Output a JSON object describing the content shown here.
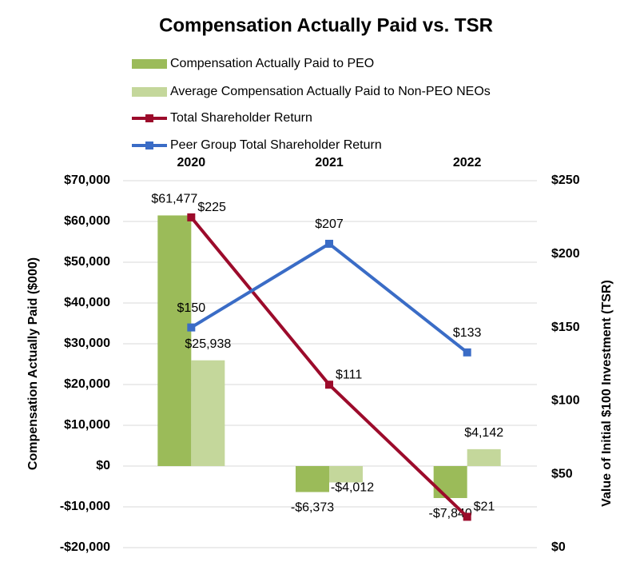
{
  "chart_data": {
    "type": "bar",
    "title": "Compensation Actually Paid vs. TSR",
    "categories": [
      "2020",
      "2021",
      "2022"
    ],
    "y_label": "Compensation Actually Paid ($000)",
    "y2_label": "Value of Initial $100 Investment (TSR)",
    "ylim": [
      -20000,
      70000
    ],
    "yticks": [
      {
        "value": -20000,
        "label": "-$20,000"
      },
      {
        "value": -10000,
        "label": "-$10,000"
      },
      {
        "value": 0,
        "label": "$0"
      },
      {
        "value": 10000,
        "label": "$10,000"
      },
      {
        "value": 20000,
        "label": "$20,000"
      },
      {
        "value": 30000,
        "label": "$30,000"
      },
      {
        "value": 40000,
        "label": "$40,000"
      },
      {
        "value": 50000,
        "label": "$50,000"
      },
      {
        "value": 60000,
        "label": "$60,000"
      },
      {
        "value": 70000,
        "label": "$70,000"
      }
    ],
    "y2lim": [
      0,
      250
    ],
    "y2ticks": [
      {
        "value": 0,
        "label": "$0"
      },
      {
        "value": 50,
        "label": "$50"
      },
      {
        "value": 100,
        "label": "$100"
      },
      {
        "value": 150,
        "label": "$150"
      },
      {
        "value": 200,
        "label": "$200"
      },
      {
        "value": 250,
        "label": "$250"
      }
    ],
    "grid": true,
    "series": [
      {
        "name": "Compensation Actually Paid to PEO",
        "type": "bar",
        "color": "#9bbb59",
        "values": [
          61477,
          -6373,
          -7840
        ],
        "value_labels": [
          "$61,477",
          "-$6,373",
          "-$7,840"
        ]
      },
      {
        "name": "Average Compensation Actually Paid to Non-PEO NEOs",
        "type": "bar",
        "color": "#c4d79b",
        "values": [
          25938,
          -4012,
          4142
        ],
        "value_labels": [
          "$25,938",
          "-$4,012",
          "$4,142"
        ]
      },
      {
        "name": "Total Shareholder Return",
        "type": "line",
        "axis": "y2",
        "color": "#9c0b2b",
        "values": [
          225,
          111,
          21
        ],
        "value_labels": [
          "$225",
          "$111",
          "$21"
        ]
      },
      {
        "name": "Peer Group Total Shareholder Return",
        "type": "line",
        "axis": "y2",
        "color": "#3a6cc6",
        "values": [
          150,
          207,
          133
        ],
        "value_labels": [
          "$150",
          "$207",
          "$133"
        ]
      }
    ]
  }
}
